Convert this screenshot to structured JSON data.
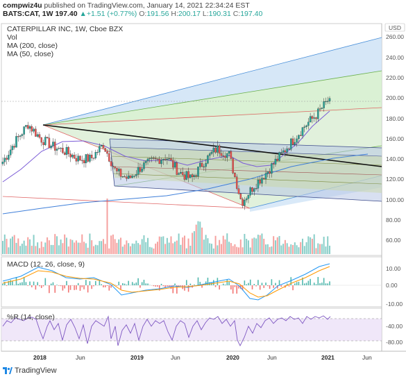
{
  "header": {
    "line1": "compwiz4u published on TradingView.com, January 14, 2021 22:34:24 EST",
    "user": "compwiz4u",
    "rest1": " published on TradingView.com, January 14, 2021 22:34:24 EST",
    "symbol": "BATS:CAT, 1W",
    "price": "197.40",
    "change": "+1.51 (+0.77%)",
    "o_label": "O:",
    "o_val": "191.56",
    "h_label": "H:",
    "h_val": "200.17",
    "l_label": "L:",
    "l_val": "190.31",
    "c_label": "C:",
    "c_val": "197.40"
  },
  "legend": {
    "title": "CATERPILLAR INC, 1W, Cboe BZX",
    "vol": "Vol",
    "ma200": "MA (200, close)",
    "ma50": "MA (50, close)",
    "macd": "MACD (12, 26, close, 9)",
    "rsi": "%R (14, close)"
  },
  "price_axis": {
    "currency": "USD",
    "ticks": [
      "260.00",
      "240.00",
      "220.00",
      "200.00",
      "180.00",
      "160.00",
      "140.00",
      "120.00",
      "100.00",
      "80.00",
      "60.00"
    ]
  },
  "macd_axis": {
    "ticks": [
      "10.00",
      "0.00",
      "-10.00"
    ]
  },
  "rsi_axis": {
    "ticks": [
      "-40.00",
      "-80.00"
    ]
  },
  "time_axis": {
    "labels": [
      "2018",
      "Jun",
      "2019",
      "Jun",
      "2020",
      "Jun",
      "2021",
      "Jun"
    ]
  },
  "footer": {
    "brand": "TradingView"
  },
  "colors": {
    "up": "#26a69a",
    "down": "#ef5350",
    "ma200": "#3f7fd9",
    "ma50": "#7b5cd6",
    "macd": "#2196f3",
    "signal": "#ff9800",
    "rsi": "#7e57c2"
  },
  "chart_data": {
    "type": "candlestick",
    "title": "CATERPILLAR INC, 1W, Cboe BZX",
    "ylim": [
      50,
      268
    ],
    "closes": [
      {
        "date": "2017-10",
        "close": 135
      },
      {
        "date": "2017-12",
        "close": 155
      },
      {
        "date": "2018-01",
        "close": 172
      },
      {
        "date": "2018-02",
        "close": 158
      },
      {
        "date": "2018-03",
        "close": 150
      },
      {
        "date": "2018-04",
        "close": 145
      },
      {
        "date": "2018-06",
        "close": 138
      },
      {
        "date": "2018-08",
        "close": 138
      },
      {
        "date": "2018-09",
        "close": 152
      },
      {
        "date": "2018-10",
        "close": 125
      },
      {
        "date": "2018-12",
        "close": 118
      },
      {
        "date": "2019-01",
        "close": 130
      },
      {
        "date": "2019-03",
        "close": 136
      },
      {
        "date": "2019-04",
        "close": 140
      },
      {
        "date": "2019-06",
        "close": 125
      },
      {
        "date": "2019-08",
        "close": 118
      },
      {
        "date": "2019-10",
        "close": 135
      },
      {
        "date": "2019-12",
        "close": 148
      },
      {
        "date": "2020-01",
        "close": 142
      },
      {
        "date": "2020-03",
        "close": 95
      },
      {
        "date": "2020-04",
        "close": 112
      },
      {
        "date": "2020-06",
        "close": 125
      },
      {
        "date": "2020-08",
        "close": 140
      },
      {
        "date": "2020-10",
        "close": 155
      },
      {
        "date": "2020-11",
        "close": 170
      },
      {
        "date": "2020-12",
        "close": 182
      },
      {
        "date": "2021-01",
        "close": 197.4
      }
    ],
    "last": {
      "open": 191.56,
      "high": 200.17,
      "low": 190.31,
      "close": 197.4,
      "change": 1.51,
      "change_pct": 0.77
    }
  }
}
